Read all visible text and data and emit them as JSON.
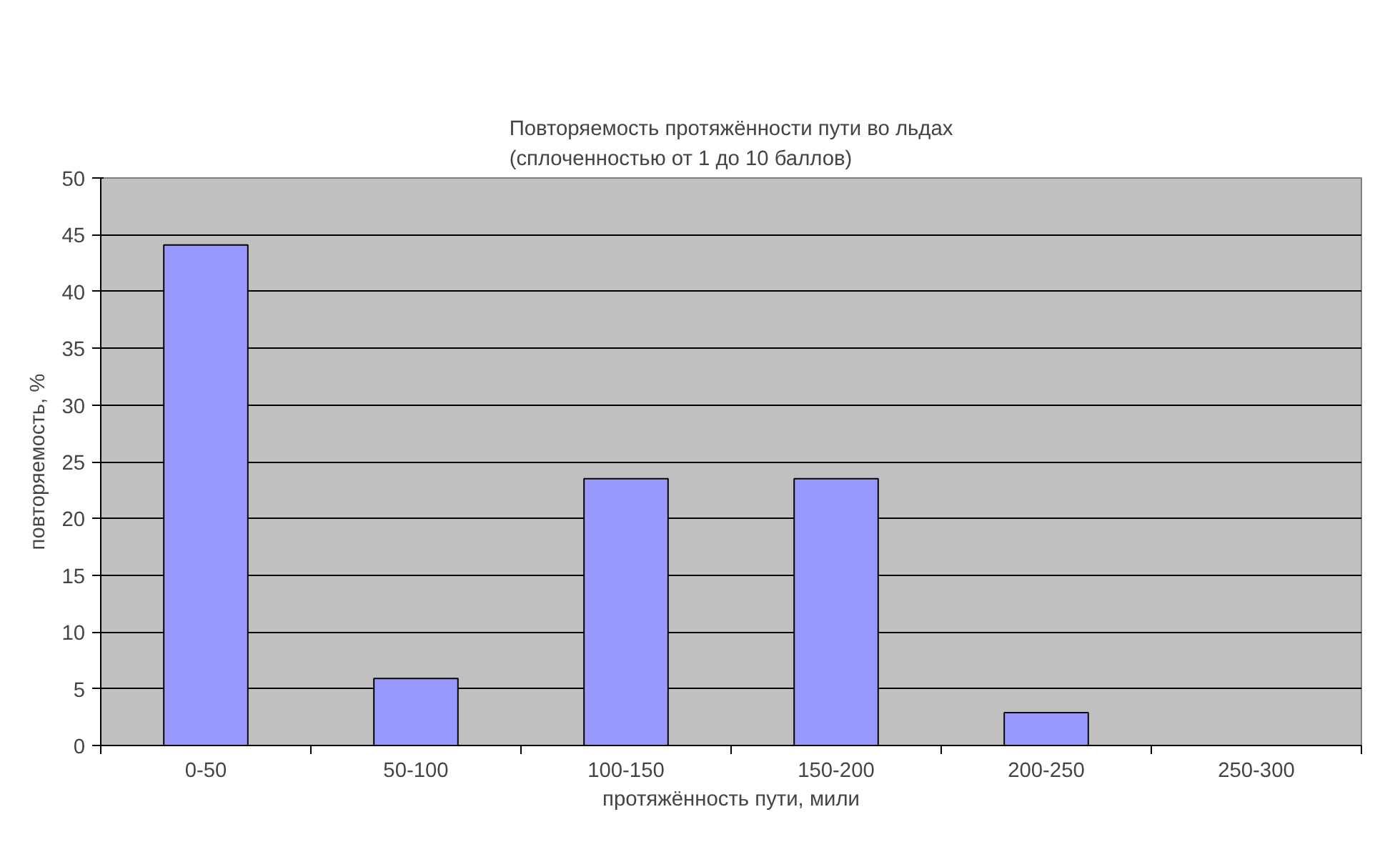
{
  "chart_data": {
    "type": "bar",
    "title": "Повторяемость протяжённости пути во льдах\n(сплоченностью от 1 до 10 баллов)",
    "xlabel": "протяжённость пути, мили",
    "ylabel": "повторяемость, %",
    "categories": [
      "0-50",
      "50-100",
      "100-150",
      "150-200",
      "200-250",
      "250-300"
    ],
    "values": [
      44.1,
      5.9,
      23.5,
      23.5,
      2.9,
      null
    ],
    "color": "#9999ff",
    "ylim": [
      0,
      50
    ],
    "yticks": [
      0,
      5,
      10,
      15,
      20,
      25,
      30,
      35,
      40,
      45,
      50
    ],
    "grid": "y"
  }
}
